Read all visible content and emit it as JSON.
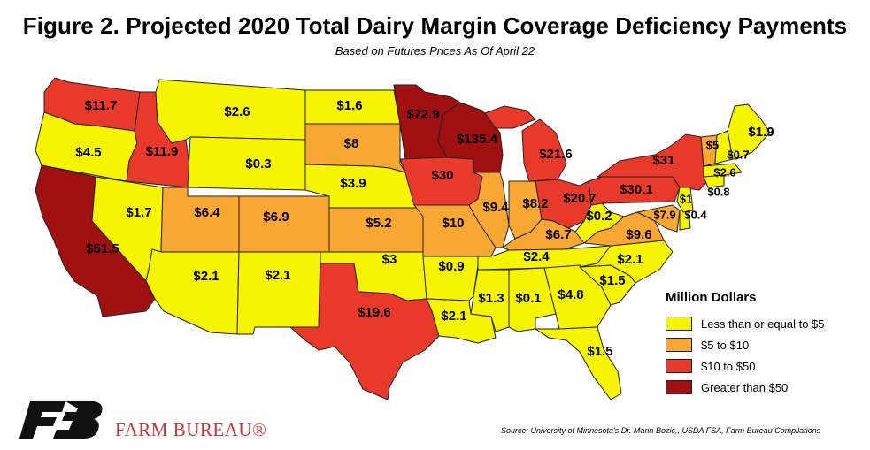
{
  "title": "Figure 2. Projected 2020 Total Dairy Margin Coverage Deficiency Payments",
  "subtitle": "Based on Futures Prices As Of April 22",
  "colors": {
    "le5": "#f7f400",
    "5to10": "#f8a832",
    "10to50": "#e8392a",
    "gt50": "#a01010"
  },
  "legend": {
    "title": "Million Dollars",
    "items": [
      {
        "label": "Less than or equal to $5",
        "class": "le5"
      },
      {
        "label": "$5 to $10",
        "class": "5to10"
      },
      {
        "label": "$10 to $50",
        "class": "10to50"
      },
      {
        "label": "Greater than $50",
        "class": "gt50"
      }
    ]
  },
  "states": [
    {
      "code": "WA",
      "value": "$11.7",
      "class": "10to50"
    },
    {
      "code": "OR",
      "value": "$4.5",
      "class": "le5"
    },
    {
      "code": "CA",
      "value": "$51.5",
      "class": "gt50"
    },
    {
      "code": "ID",
      "value": "$11.9",
      "class": "10to50"
    },
    {
      "code": "NV",
      "value": "$1.7",
      "class": "le5"
    },
    {
      "code": "MT",
      "value": "$2.6",
      "class": "le5"
    },
    {
      "code": "WY",
      "value": "$0.3",
      "class": "le5"
    },
    {
      "code": "UT",
      "value": "$6.4",
      "class": "5to10"
    },
    {
      "code": "AZ",
      "value": "$2.1",
      "class": "le5"
    },
    {
      "code": "CO",
      "value": "$6.9",
      "class": "5to10"
    },
    {
      "code": "NM",
      "value": "$2.1",
      "class": "le5"
    },
    {
      "code": "ND",
      "value": "$1.6",
      "class": "le5"
    },
    {
      "code": "SD",
      "value": "$8",
      "class": "5to10"
    },
    {
      "code": "NE",
      "value": "$3.9",
      "class": "le5"
    },
    {
      "code": "KS",
      "value": "$5.2",
      "class": "5to10"
    },
    {
      "code": "OK",
      "value": "$3",
      "class": "le5"
    },
    {
      "code": "TX",
      "value": "$19.6",
      "class": "10to50"
    },
    {
      "code": "MN",
      "value": "$72.9",
      "class": "gt50"
    },
    {
      "code": "IA",
      "value": "$30",
      "class": "10to50"
    },
    {
      "code": "MO",
      "value": "$10",
      "class": "5to10"
    },
    {
      "code": "AR",
      "value": "$0.9",
      "class": "le5"
    },
    {
      "code": "LA",
      "value": "$2.1",
      "class": "le5"
    },
    {
      "code": "WI",
      "value": "$135.4",
      "class": "gt50"
    },
    {
      "code": "IL",
      "value": "$9.4",
      "class": "5to10"
    },
    {
      "code": "MI",
      "value": "$21.6",
      "class": "10to50"
    },
    {
      "code": "IN",
      "value": "$8.2",
      "class": "5to10"
    },
    {
      "code": "OH",
      "value": "$20.7",
      "class": "10to50"
    },
    {
      "code": "KY",
      "value": "$6.7",
      "class": "5to10"
    },
    {
      "code": "TN",
      "value": "$2.4",
      "class": "le5"
    },
    {
      "code": "MS",
      "value": "$1.3",
      "class": "le5"
    },
    {
      "code": "AL",
      "value": "$0.1",
      "class": "le5"
    },
    {
      "code": "GA",
      "value": "$4.8",
      "class": "le5"
    },
    {
      "code": "FL",
      "value": "$1.5",
      "class": "le5"
    },
    {
      "code": "SC",
      "value": "$1.5",
      "class": "le5"
    },
    {
      "code": "NC",
      "value": "$2.1",
      "class": "le5"
    },
    {
      "code": "VA",
      "value": "$9.6",
      "class": "5to10"
    },
    {
      "code": "WV",
      "value": "$0.2",
      "class": "le5"
    },
    {
      "code": "PA",
      "value": "$30.1",
      "class": "10to50"
    },
    {
      "code": "NY",
      "value": "$31",
      "class": "10to50"
    },
    {
      "code": "MD",
      "value": "$7.9",
      "class": "5to10"
    },
    {
      "code": "DE",
      "value": "$0.4",
      "class": "le5"
    },
    {
      "code": "NJ",
      "value": "$1",
      "class": "le5"
    },
    {
      "code": "CT",
      "value": "$0.8",
      "class": "le5"
    },
    {
      "code": "VT",
      "value": "$5",
      "class": "5to10"
    },
    {
      "code": "NH",
      "value": "$0.7",
      "class": "le5"
    },
    {
      "code": "MA",
      "value": "$2.6",
      "class": "le5"
    },
    {
      "code": "ME",
      "value": "$1.9",
      "class": "le5"
    }
  ],
  "brand": {
    "name": "FARM BUREAU®"
  },
  "source": "Source: University of Minnesota's Dr. Marin Bozic,, USDA FSA, Farm Bureau Compilations"
}
